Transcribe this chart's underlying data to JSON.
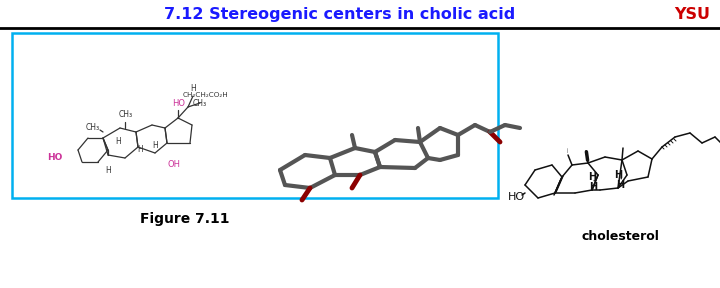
{
  "title": "7.12 Stereogenic centers in cholic acid",
  "title_color": "#1a1aff",
  "title_fontsize": 11.5,
  "title_fontweight": "bold",
  "ysu_text": "YSU",
  "ysu_color": "#cc0000",
  "ysu_fontsize": 11.5,
  "ysu_fontweight": "bold",
  "figure_caption": "Figure 7.11",
  "figure_caption_fontsize": 10,
  "figure_caption_fontweight": "bold",
  "cholesterol_label": "cholesterol",
  "cholesterol_fontsize": 9,
  "cholesterol_fontweight": "bold",
  "box_color": "#00b0f0",
  "fig_width": 7.2,
  "fig_height": 2.88,
  "dpi": 100
}
